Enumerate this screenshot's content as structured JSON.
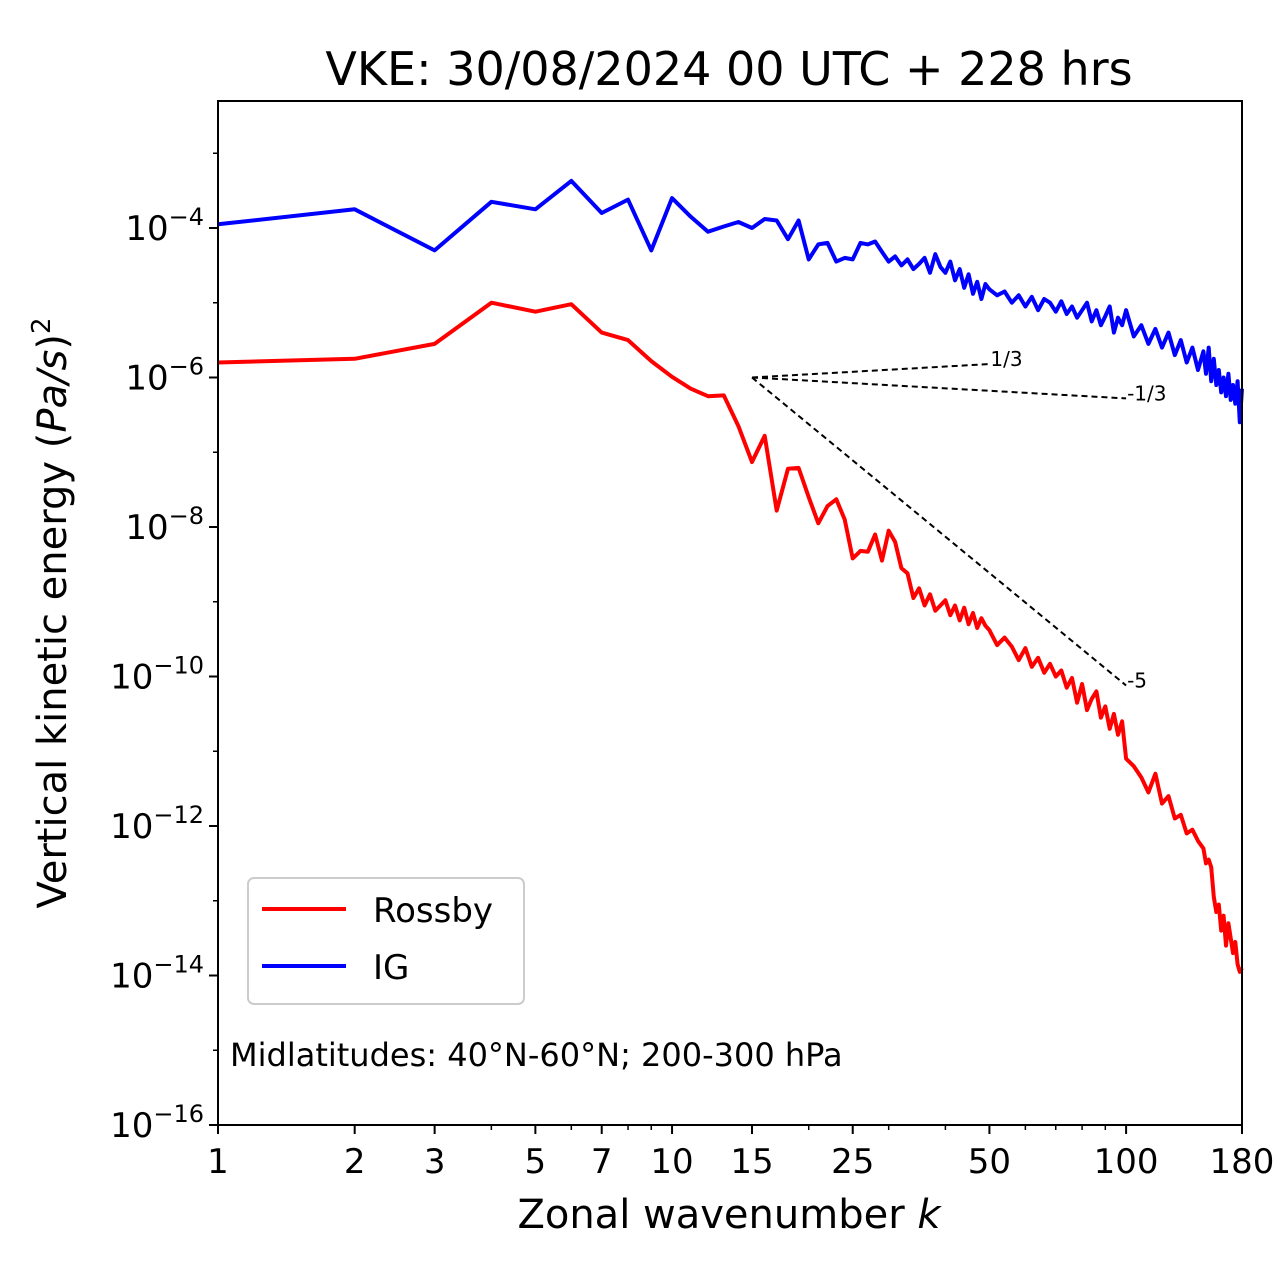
{
  "chart_data": {
    "type": "line",
    "title": "VKE: 30/08/2024 00 UTC + 228 hrs",
    "xlabel_prefix": "Zonal wavenumber ",
    "xlabel_var": "k",
    "ylabel_prefix": "Vertical kinetic energy (",
    "ylabel_var": "Pa/s",
    "ylabel_suffix": ")",
    "ylabel_exp": "2",
    "x_scale": "log",
    "y_scale": "log",
    "xlim": [
      1,
      180
    ],
    "ylim": [
      1e-16,
      0.005
    ],
    "xticks": [
      1,
      2,
      3,
      5,
      7,
      10,
      15,
      25,
      50,
      100,
      180
    ],
    "yticks": [
      -16,
      -14,
      -12,
      -10,
      -8,
      -6,
      -4
    ],
    "ytick_base": "10",
    "grid": false,
    "legend_position": "lower-left",
    "annotation": "Midlatitudes: 40°N-60°N; 200-300 hPa",
    "series": [
      {
        "name": "Rossby",
        "color": "#ff0000",
        "x": [
          1,
          2,
          3,
          4,
          5,
          6,
          7,
          8,
          9,
          10,
          11,
          12,
          13,
          14,
          15,
          16,
          17,
          18,
          19,
          20,
          21,
          22,
          23,
          24,
          25,
          26,
          27,
          28,
          29,
          30,
          31,
          32,
          33,
          34,
          35,
          36,
          37,
          38,
          39,
          40,
          41,
          42,
          43,
          44,
          45,
          46,
          47,
          48,
          49,
          50,
          52,
          54,
          56,
          58,
          60,
          62,
          64,
          66,
          68,
          70,
          72,
          74,
          76,
          78,
          80,
          82,
          84,
          86,
          88,
          90,
          92,
          94,
          96,
          98,
          100,
          104,
          108,
          112,
          116,
          120,
          124,
          128,
          132,
          136,
          140,
          144,
          148,
          150,
          152,
          154,
          156,
          158,
          160,
          162,
          164,
          166,
          168,
          170,
          172,
          174,
          176,
          178,
          180
        ],
        "log10_y": [
          -5.8,
          -5.75,
          -5.55,
          -5.0,
          -5.12,
          -5.02,
          -5.4,
          -5.5,
          -5.78,
          -5.99,
          -6.15,
          -6.25,
          -6.24,
          -6.65,
          -7.13,
          -6.78,
          -7.78,
          -7.22,
          -7.21,
          -7.6,
          -7.95,
          -7.72,
          -7.63,
          -7.9,
          -8.42,
          -8.32,
          -8.33,
          -8.1,
          -8.45,
          -8.05,
          -8.2,
          -8.55,
          -8.62,
          -8.95,
          -8.82,
          -9.05,
          -8.9,
          -9.12,
          -9.05,
          -8.98,
          -9.18,
          -9.05,
          -9.25,
          -9.08,
          -9.3,
          -9.15,
          -9.35,
          -9.22,
          -9.32,
          -9.38,
          -9.58,
          -9.48,
          -9.6,
          -9.78,
          -9.62,
          -9.87,
          -9.75,
          -9.95,
          -9.83,
          -10.0,
          -9.92,
          -10.15,
          -10.02,
          -10.35,
          -10.1,
          -10.45,
          -10.3,
          -10.2,
          -10.55,
          -10.4,
          -10.7,
          -10.5,
          -10.78,
          -10.6,
          -11.1,
          -11.2,
          -11.35,
          -11.55,
          -11.3,
          -11.7,
          -11.6,
          -11.9,
          -11.85,
          -12.1,
          -12.05,
          -12.2,
          -12.3,
          -12.5,
          -12.45,
          -12.55,
          -12.95,
          -13.15,
          -13.05,
          -13.4,
          -13.2,
          -13.6,
          -13.3,
          -13.5,
          -13.7,
          -13.55,
          -13.85,
          -13.95,
          -13.9
        ]
      },
      {
        "name": "IG",
        "color": "#0000ff",
        "x": [
          1,
          2,
          3,
          4,
          5,
          6,
          7,
          8,
          9,
          10,
          11,
          12,
          13,
          14,
          15,
          16,
          17,
          18,
          19,
          20,
          21,
          22,
          23,
          24,
          25,
          26,
          27,
          28,
          29,
          30,
          31,
          32,
          33,
          34,
          35,
          36,
          37,
          38,
          39,
          40,
          41,
          42,
          43,
          44,
          45,
          46,
          47,
          48,
          49,
          50,
          52,
          54,
          56,
          58,
          60,
          62,
          64,
          66,
          68,
          70,
          72,
          74,
          76,
          78,
          80,
          82,
          84,
          86,
          88,
          90,
          92,
          94,
          96,
          98,
          100,
          104,
          108,
          112,
          116,
          120,
          124,
          128,
          132,
          136,
          140,
          144,
          148,
          150,
          152,
          154,
          156,
          158,
          160,
          162,
          164,
          166,
          168,
          170,
          172,
          174,
          176,
          178,
          180
        ],
        "log10_y": [
          -3.95,
          -3.75,
          -4.3,
          -3.65,
          -3.75,
          -3.37,
          -3.8,
          -3.62,
          -4.3,
          -3.6,
          -3.85,
          -4.05,
          -3.98,
          -3.92,
          -4.0,
          -3.88,
          -3.9,
          -4.15,
          -3.9,
          -4.42,
          -4.22,
          -4.2,
          -4.45,
          -4.4,
          -4.42,
          -4.2,
          -4.22,
          -4.18,
          -4.32,
          -4.45,
          -4.38,
          -4.5,
          -4.42,
          -4.55,
          -4.48,
          -4.4,
          -4.6,
          -4.35,
          -4.52,
          -4.6,
          -4.45,
          -4.7,
          -4.55,
          -4.8,
          -4.62,
          -4.88,
          -4.72,
          -4.95,
          -4.75,
          -4.82,
          -4.9,
          -4.85,
          -5.0,
          -4.9,
          -5.05,
          -4.92,
          -5.1,
          -4.95,
          -5.0,
          -5.12,
          -4.98,
          -5.15,
          -5.05,
          -5.2,
          -5.1,
          -5.0,
          -5.25,
          -5.1,
          -5.3,
          -5.18,
          -5.05,
          -5.4,
          -5.2,
          -5.3,
          -5.1,
          -5.45,
          -5.3,
          -5.55,
          -5.35,
          -5.6,
          -5.4,
          -5.7,
          -5.5,
          -5.8,
          -5.6,
          -5.9,
          -5.65,
          -5.95,
          -5.6,
          -6.05,
          -5.75,
          -6.1,
          -5.9,
          -6.2,
          -6.0,
          -6.25,
          -5.95,
          -6.3,
          -6.1,
          -6.35,
          -6.05,
          -6.6,
          -6.15
        ]
      }
    ],
    "reference_slopes": [
      {
        "label": "1/3",
        "x": [
          15,
          50
        ],
        "log10_y": [
          -6.0,
          -5.82
        ]
      },
      {
        "label": "-1/3",
        "x": [
          15,
          100
        ],
        "log10_y": [
          -6.0,
          -6.28
        ]
      },
      {
        "label": "-5",
        "x": [
          15,
          100
        ],
        "log10_y": [
          -6.0,
          -10.12
        ]
      }
    ]
  }
}
